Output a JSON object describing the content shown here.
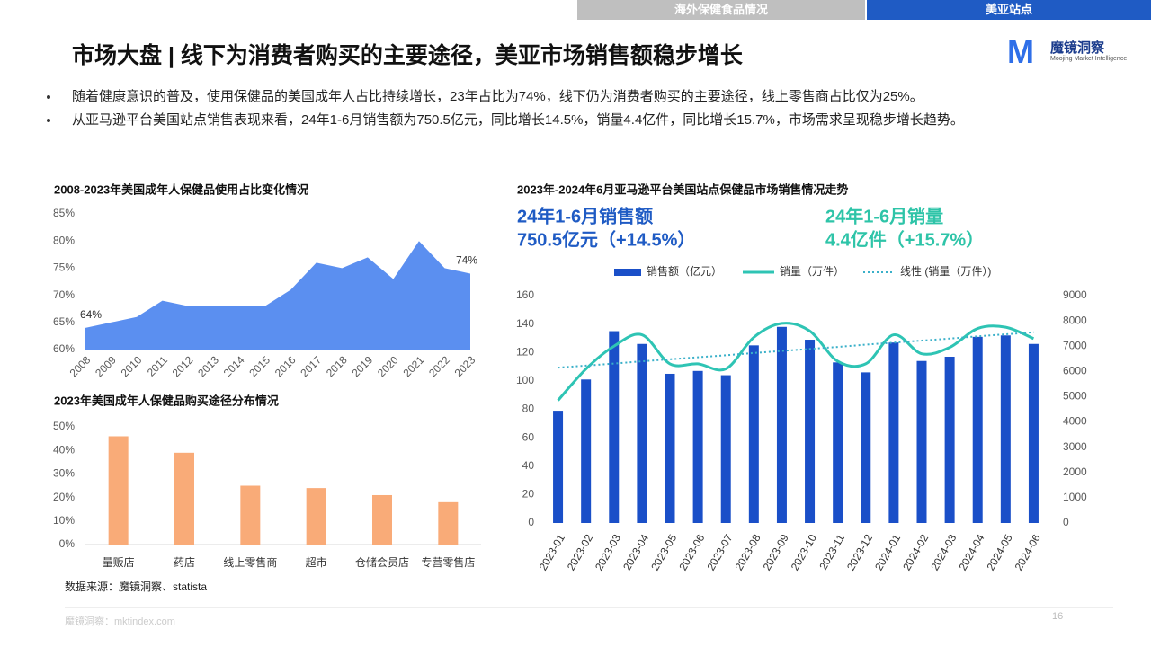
{
  "nav": [
    "海外保健食品情况",
    "美亚站点"
  ],
  "title": "市场大盘 | 线下为消费者购买的主要途径，美亚市场销售额稳步增长",
  "logo": {
    "name": "魔镜洞察",
    "sub": "Moojing Market Intelligence"
  },
  "bullets": [
    "随着健康意识的普及，使用保健品的美国成年人占比持续增长，23年占比为74%，线下仍为消费者购买的主要途径，线上零售商占比仅为25%。",
    "从亚马逊平台美国站点销售表现来看，24年1-6月销售额为750.5亿元，同比增长14.5%，销量4.4亿件，同比增长15.7%，市场需求呈现稳步增长趋势。"
  ],
  "source": "数据来源：魔镜洞察、statista",
  "footer": "魔镜洞察：mktindex.com",
  "page_number": 16,
  "chart_data": [
    {
      "type": "area",
      "title": "2008-2023年美国成年人保健品使用占比变化情况",
      "categories": [
        "2008",
        "2009",
        "2010",
        "2011",
        "2012",
        "2013",
        "2014",
        "2015",
        "2016",
        "2017",
        "2018",
        "2019",
        "2020",
        "2021",
        "2022",
        "2023"
      ],
      "values": [
        64,
        65,
        66,
        69,
        68,
        68,
        68,
        68,
        71,
        76,
        75,
        77,
        73,
        80,
        75,
        74
      ],
      "value_labels": [
        "64%",
        null,
        null,
        null,
        null,
        null,
        null,
        null,
        null,
        null,
        null,
        null,
        null,
        null,
        null,
        "74%"
      ],
      "color": "#5b8ff0",
      "ylim": [
        60,
        85
      ],
      "yticks": [
        {
          "value": 60,
          "label": "60%"
        },
        {
          "value": 65,
          "label": "65%"
        },
        {
          "value": 70,
          "label": "70%"
        },
        {
          "value": 75,
          "label": "75%"
        },
        {
          "value": 80,
          "label": "80%"
        },
        {
          "value": 85,
          "label": "85%"
        }
      ]
    },
    {
      "type": "bar",
      "title": "2023年美国成年人保健品购买途径分布情况",
      "categories": [
        "量贩店",
        "药店",
        "线上零售商",
        "超市",
        "仓储会员店",
        "专营零售店"
      ],
      "values": [
        46,
        39,
        25,
        24,
        21,
        18
      ],
      "color": "#f9ab78",
      "ylim": [
        0,
        50
      ],
      "yticks": [
        {
          "value": 0,
          "label": "0%"
        },
        {
          "value": 10,
          "label": "10%"
        },
        {
          "value": 20,
          "label": "20%"
        },
        {
          "value": 30,
          "label": "30%"
        },
        {
          "value": 40,
          "label": "40%"
        },
        {
          "value": 50,
          "label": "50%"
        }
      ]
    },
    {
      "type": "combo",
      "title": "2023年-2024年6月亚马逊平台美国站点保健品市场销售情况走势",
      "kpis": [
        {
          "line1": "24年1-6月销售额",
          "line2": "750.5亿元（+14.5%）",
          "color": "#1f5bc4"
        },
        {
          "line1": "24年1-6月销量",
          "line2": "4.4亿件（+15.7%）",
          "color": "#2ec4a8"
        }
      ],
      "categories": [
        "2023-01",
        "2023-02",
        "2023-03",
        "2023-04",
        "2023-05",
        "2023-06",
        "2023-07",
        "2023-08",
        "2023-09",
        "2023-10",
        "2023-11",
        "2023-12",
        "2024-01",
        "2024-02",
        "2024-03",
        "2024-04",
        "2024-05",
        "2024-06"
      ],
      "series": [
        {
          "name": "销售额（亿元）",
          "kind": "bar",
          "color": "#1a4fc8",
          "values": [
            79,
            101,
            135,
            126,
            105,
            107,
            104,
            125,
            138,
            129,
            113,
            106,
            127,
            114,
            117,
            131,
            132,
            126
          ]
        },
        {
          "name": "销量（万件）",
          "kind": "smooth",
          "axis": "y2",
          "color": "#2ec4b4",
          "values": [
            4850,
            6100,
            7000,
            7450,
            6300,
            6300,
            6100,
            7350,
            7900,
            7600,
            6400,
            6300,
            7450,
            6700,
            6950,
            7700,
            7750,
            7300
          ]
        },
        {
          "name": "线性 (销量（万件）)",
          "kind": "dotted",
          "axis": "y2",
          "color": "#3ab0c9",
          "values": [
            6150,
            6230,
            6310,
            6400,
            6480,
            6560,
            6640,
            6730,
            6810,
            6890,
            6970,
            7060,
            7140,
            7220,
            7300,
            7390,
            7470,
            7550
          ]
        }
      ],
      "ylim": [
        0,
        160
      ],
      "yticks": [
        0,
        20,
        40,
        60,
        80,
        100,
        120,
        140,
        160
      ],
      "y2lim": [
        0,
        9000
      ],
      "y2ticks": [
        0,
        1000,
        2000,
        3000,
        4000,
        5000,
        6000,
        7000,
        8000,
        9000
      ]
    }
  ]
}
